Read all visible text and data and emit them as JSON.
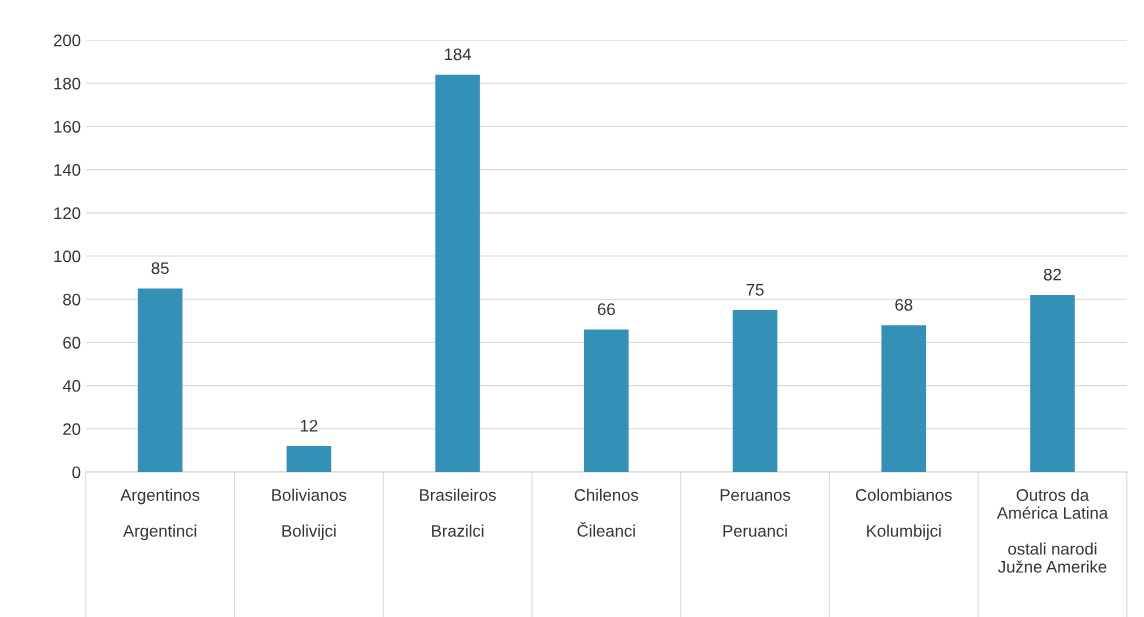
{
  "chart_data": {
    "type": "bar",
    "categories": [
      "Argentinos\n\nArgentinci",
      "Bolivianos\n\nBolivijci",
      "Brasileiros\n\nBrazilci",
      "Chilenos\n\nČileanci",
      "Peruanos\n\nPeruanci",
      "Colombianos\n\nKolumbijci",
      "Outros da\nAmérica Latina\n\nostali narodi\nJužne Amerike"
    ],
    "values": [
      85,
      12,
      184,
      66,
      75,
      68,
      82
    ],
    "color": "#3391b8",
    "ylim": [
      0,
      200
    ],
    "yticks": [
      0,
      20,
      40,
      60,
      80,
      100,
      120,
      140,
      160,
      180,
      200
    ],
    "grid": "y",
    "data_labels": true,
    "legend": false
  }
}
